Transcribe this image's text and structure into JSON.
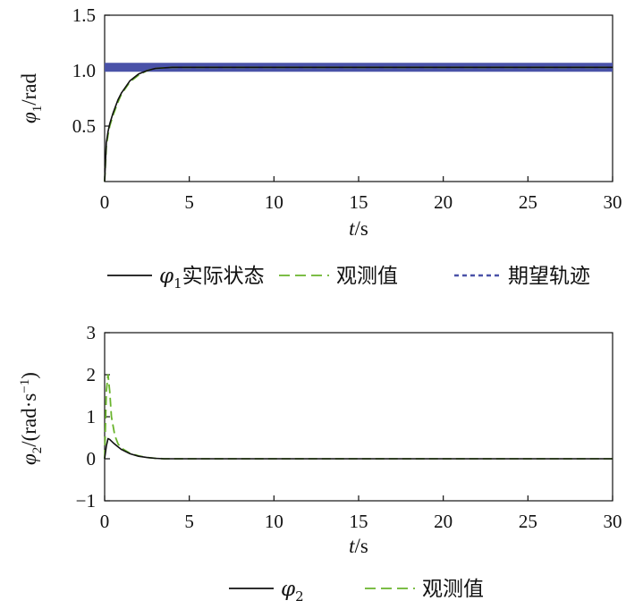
{
  "chart_data": [
    {
      "type": "line",
      "ylabel": {
        "sym": "φ",
        "sub": "1",
        "unit": "/rad"
      },
      "xlabel": {
        "sym": "t",
        "unit": "/s"
      },
      "xlim": [
        0,
        30
      ],
      "ylim": [
        0,
        1.5
      ],
      "xticks": [
        "0",
        "5",
        "10",
        "15",
        "20",
        "25",
        "30"
      ],
      "yticks": [
        "0.5",
        "1.0",
        "1.5"
      ],
      "ytick_values": [
        0.5,
        1.0,
        1.5
      ],
      "colors": {
        "actual": "#111111",
        "observed": "#6ab42d",
        "desired": "#4a52a8"
      },
      "series": [
        {
          "key": "actual",
          "name": "实际状态",
          "sym": "φ",
          "sub": "1",
          "x": [
            0,
            0.1,
            0.2,
            0.3,
            0.5,
            0.8,
            1.0,
            1.5,
            2.0,
            2.5,
            3.0,
            4.0,
            30
          ],
          "y": [
            0,
            0.35,
            0.45,
            0.52,
            0.62,
            0.74,
            0.8,
            0.91,
            0.97,
            1.0,
            1.02,
            1.03,
            1.03
          ]
        },
        {
          "key": "observed",
          "name": "观测值",
          "x": [
            0,
            0.1,
            0.2,
            0.3,
            0.5,
            0.8,
            1.0,
            1.5,
            2.0,
            2.5,
            3.0,
            4.0,
            30
          ],
          "y": [
            0,
            0.32,
            0.42,
            0.5,
            0.6,
            0.72,
            0.79,
            0.9,
            0.96,
            1.0,
            1.02,
            1.03,
            1.03
          ]
        },
        {
          "key": "desired",
          "name": "期望轨迹",
          "x": [
            0,
            30
          ],
          "y": [
            1.03,
            1.03
          ]
        }
      ]
    },
    {
      "type": "line",
      "ylabel": {
        "sym": "φ",
        "sub": "2",
        "unit": "/(rad·s",
        "sup": "−1",
        "close": ")"
      },
      "xlabel": {
        "sym": "t",
        "unit": "/s"
      },
      "xlim": [
        0,
        30
      ],
      "ylim": [
        -1,
        3
      ],
      "xticks": [
        "0",
        "5",
        "10",
        "15",
        "20",
        "25",
        "30"
      ],
      "yticks": [
        "−1",
        "0",
        "1",
        "2",
        "3"
      ],
      "ytick_values": [
        -1,
        0,
        1,
        2,
        3
      ],
      "colors": {
        "actual": "#111111",
        "observed": "#6ab42d"
      },
      "series": [
        {
          "key": "actual",
          "name": "",
          "sym": "φ",
          "sub": "2",
          "x": [
            0,
            0.1,
            0.2,
            0.3,
            0.5,
            0.8,
            1.0,
            1.5,
            2.0,
            2.5,
            3.0,
            3.5,
            30
          ],
          "y": [
            0,
            0.3,
            0.48,
            0.46,
            0.38,
            0.28,
            0.22,
            0.12,
            0.06,
            0.03,
            0.01,
            0,
            0
          ]
        },
        {
          "key": "observed",
          "name": "观测值",
          "x": [
            0,
            0.1,
            0.2,
            0.3,
            0.4,
            0.6,
            0.8,
            1.0,
            1.5,
            2.0,
            2.5,
            3.0,
            3.5,
            30
          ],
          "y": [
            0,
            1.6,
            2.0,
            1.6,
            1.0,
            0.55,
            0.35,
            0.25,
            0.13,
            0.07,
            0.03,
            0.01,
            0,
            0
          ]
        }
      ]
    }
  ]
}
